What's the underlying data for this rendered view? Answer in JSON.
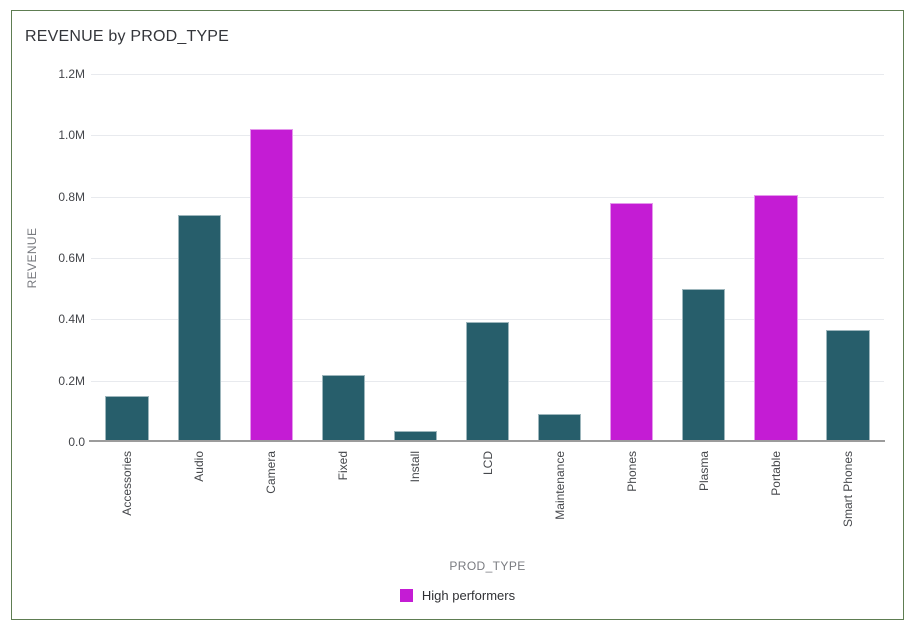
{
  "card": {
    "border_color": "#5e7d52",
    "background": "#ffffff"
  },
  "chart_data": {
    "type": "bar",
    "title": "REVENUE by PROD_TYPE",
    "xlabel": "PROD_TYPE",
    "ylabel": "REVENUE",
    "categories": [
      "Accessories",
      "Audio",
      "Camera",
      "Fixed",
      "Install",
      "LCD",
      "Maintenance",
      "Phones",
      "Plasma",
      "Portable",
      "Smart Phones"
    ],
    "values": [
      0.15,
      0.74,
      1.02,
      0.22,
      0.035,
      0.39,
      0.09,
      0.78,
      0.5,
      0.805,
      0.365
    ],
    "values_unit": "millions",
    "highlight_flags": [
      false,
      false,
      true,
      false,
      false,
      false,
      false,
      true,
      false,
      true,
      false
    ],
    "highlighted_categories": [
      "Camera",
      "Phones",
      "Portable"
    ],
    "ylim": [
      0,
      1.2
    ],
    "yticks": [
      {
        "label": "1.2M",
        "value": 1.2
      },
      {
        "label": "1.0M",
        "value": 1.0
      },
      {
        "label": "0.8M",
        "value": 0.8
      },
      {
        "label": "0.6M",
        "value": 0.6
      },
      {
        "label": "0.4M",
        "value": 0.4
      },
      {
        "label": "0.2M",
        "value": 0.2
      },
      {
        "label": "0.0",
        "value": 0.0
      }
    ],
    "grid": true,
    "legend": {
      "position": "bottom",
      "entries": [
        {
          "label": "High performers",
          "color": "#c41cd4"
        }
      ]
    },
    "colors": {
      "bar_default": "#275e6b",
      "bar_highlight": "#c41cd4",
      "gridline": "#e8eaee",
      "axis_line": "#9c9c9c"
    }
  }
}
